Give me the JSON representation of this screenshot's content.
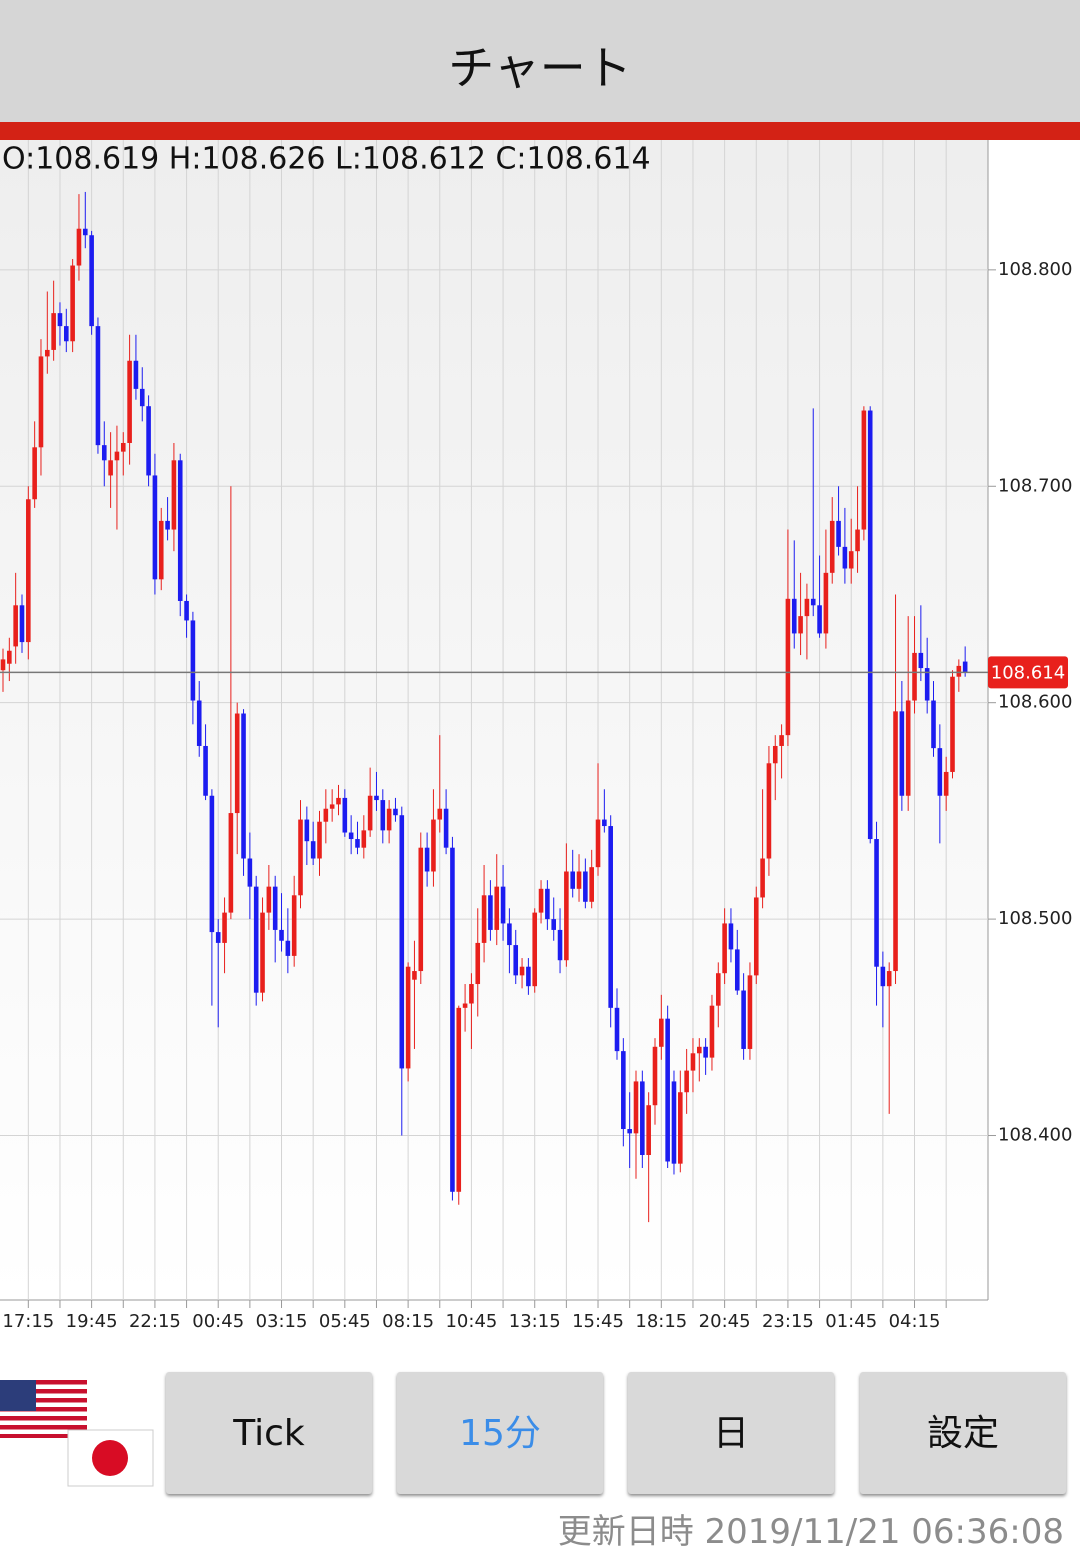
{
  "header": {
    "title": "チャート"
  },
  "chart_data": {
    "type": "candlestick",
    "info": "O:108.619 H:108.626 L:108.612 C:108.614",
    "up_color": "#e8201c",
    "down_color": "#1c1cf0",
    "ylim": [
      108.324,
      108.86
    ],
    "yticks": [
      {
        "value": 108.4,
        "label": "108.400"
      },
      {
        "value": 108.5,
        "label": "108.500"
      },
      {
        "value": 108.6,
        "label": "108.600"
      },
      {
        "value": 108.7,
        "label": "108.700"
      },
      {
        "value": 108.8,
        "label": "108.800"
      }
    ],
    "grid": true,
    "last_price": 108.614,
    "categories": [
      null,
      null,
      null,
      null,
      "17:15",
      null,
      null,
      null,
      null,
      null,
      null,
      null,
      null,
      null,
      "19:45",
      null,
      null,
      null,
      null,
      null,
      null,
      null,
      null,
      null,
      "22:15",
      null,
      null,
      null,
      null,
      null,
      null,
      null,
      null,
      null,
      "00:45",
      null,
      null,
      null,
      null,
      null,
      null,
      null,
      null,
      null,
      "03:15",
      null,
      null,
      null,
      null,
      null,
      null,
      null,
      null,
      null,
      "05:45",
      null,
      null,
      null,
      null,
      null,
      null,
      null,
      null,
      null,
      "08:15",
      null,
      null,
      null,
      null,
      null,
      null,
      null,
      null,
      null,
      "10:45",
      null,
      null,
      null,
      null,
      null,
      null,
      null,
      null,
      null,
      "13:15",
      null,
      null,
      null,
      null,
      null,
      null,
      null,
      null,
      null,
      "15:45",
      null,
      null,
      null,
      null,
      null,
      null,
      null,
      null,
      null,
      "18:15",
      null,
      null,
      null,
      null,
      null,
      null,
      null,
      null,
      null,
      "20:45",
      null,
      null,
      null,
      null,
      null,
      null,
      null,
      null,
      null,
      "23:15",
      null,
      null,
      null,
      null,
      null,
      null,
      null,
      null,
      null,
      "01:45",
      null,
      null,
      null,
      null,
      null,
      null,
      null,
      null,
      null,
      "04:15",
      null,
      null,
      null,
      null,
      null,
      null,
      null,
      null
    ],
    "ohlc": [
      [
        108.615,
        108.625,
        108.605,
        108.62
      ],
      [
        108.618,
        108.63,
        108.61,
        108.624
      ],
      [
        108.626,
        108.66,
        108.618,
        108.645
      ],
      [
        108.645,
        108.65,
        108.623,
        108.628
      ],
      [
        108.628,
        108.7,
        108.62,
        108.694
      ],
      [
        108.694,
        108.73,
        108.69,
        108.718
      ],
      [
        108.718,
        108.768,
        108.705,
        108.76
      ],
      [
        108.76,
        108.79,
        108.752,
        108.763
      ],
      [
        108.763,
        108.795,
        108.758,
        108.78
      ],
      [
        108.78,
        108.785,
        108.765,
        108.774
      ],
      [
        108.774,
        108.782,
        108.762,
        108.767
      ],
      [
        108.767,
        108.805,
        108.762,
        108.802
      ],
      [
        108.802,
        108.835,
        108.795,
        108.819
      ],
      [
        108.819,
        108.836,
        108.81,
        108.816
      ],
      [
        108.816,
        108.818,
        108.77,
        108.774
      ],
      [
        108.774,
        108.778,
        108.715,
        108.719
      ],
      [
        108.719,
        108.73,
        108.7,
        108.712
      ],
      [
        108.705,
        108.725,
        108.69,
        108.712
      ],
      [
        108.712,
        108.728,
        108.68,
        108.716
      ],
      [
        108.716,
        108.725,
        108.705,
        108.72
      ],
      [
        108.72,
        108.77,
        108.71,
        108.758
      ],
      [
        108.758,
        108.77,
        108.74,
        108.745
      ],
      [
        108.745,
        108.755,
        108.73,
        108.737
      ],
      [
        108.737,
        108.742,
        108.7,
        108.705
      ],
      [
        108.705,
        108.715,
        108.65,
        108.657
      ],
      [
        108.657,
        108.69,
        108.652,
        108.684
      ],
      [
        108.684,
        108.695,
        108.675,
        108.68
      ],
      [
        108.68,
        108.72,
        108.67,
        108.712
      ],
      [
        108.712,
        108.715,
        108.64,
        108.647
      ],
      [
        108.647,
        108.65,
        108.63,
        108.638
      ],
      [
        108.638,
        108.642,
        108.59,
        108.601
      ],
      [
        108.601,
        108.61,
        108.575,
        108.58
      ],
      [
        108.58,
        108.59,
        108.555,
        108.557
      ],
      [
        108.557,
        108.56,
        108.46,
        108.494
      ],
      [
        108.494,
        108.5,
        108.45,
        108.489
      ],
      [
        108.489,
        108.51,
        108.475,
        108.503
      ],
      [
        108.503,
        108.7,
        108.5,
        108.549
      ],
      [
        108.549,
        108.6,
        108.53,
        108.595
      ],
      [
        108.595,
        108.597,
        108.52,
        108.528
      ],
      [
        108.528,
        108.54,
        108.5,
        108.515
      ],
      [
        108.515,
        108.52,
        108.46,
        108.466
      ],
      [
        108.466,
        108.51,
        108.462,
        108.503
      ],
      [
        108.503,
        108.525,
        108.495,
        108.515
      ],
      [
        108.515,
        108.52,
        108.48,
        108.495
      ],
      [
        108.495,
        108.512,
        108.485,
        108.49
      ],
      [
        108.49,
        108.505,
        108.475,
        108.483
      ],
      [
        108.483,
        108.52,
        108.478,
        108.511
      ],
      [
        108.511,
        108.555,
        108.505,
        108.546
      ],
      [
        108.546,
        108.552,
        108.525,
        108.536
      ],
      [
        108.536,
        108.545,
        108.525,
        108.528
      ],
      [
        108.528,
        108.55,
        108.52,
        108.545
      ],
      [
        108.545,
        108.56,
        108.535,
        108.551
      ],
      [
        108.551,
        108.56,
        108.545,
        108.553
      ],
      [
        108.553,
        108.562,
        108.548,
        108.556
      ],
      [
        108.556,
        108.56,
        108.538,
        108.54
      ],
      [
        108.54,
        108.548,
        108.53,
        108.537
      ],
      [
        108.537,
        108.545,
        108.53,
        108.533
      ],
      [
        108.533,
        108.548,
        108.528,
        108.541
      ],
      [
        108.541,
        108.57,
        108.538,
        108.557
      ],
      [
        108.557,
        108.568,
        108.55,
        108.555
      ],
      [
        108.555,
        108.56,
        108.535,
        108.541
      ],
      [
        108.541,
        108.555,
        108.535,
        108.551
      ],
      [
        108.551,
        108.556,
        108.545,
        108.548
      ],
      [
        108.548,
        108.552,
        108.4,
        108.431
      ],
      [
        108.431,
        108.48,
        108.425,
        108.478
      ],
      [
        108.472,
        108.49,
        108.44,
        108.476
      ],
      [
        108.476,
        108.54,
        108.47,
        108.533
      ],
      [
        108.533,
        108.54,
        108.515,
        108.522
      ],
      [
        108.522,
        108.56,
        108.515,
        108.546
      ],
      [
        108.546,
        108.585,
        108.54,
        108.551
      ],
      [
        108.551,
        108.56,
        108.53,
        108.533
      ],
      [
        108.533,
        108.538,
        108.37,
        108.374
      ],
      [
        108.374,
        108.46,
        108.368,
        108.459
      ],
      [
        108.459,
        108.47,
        108.448,
        108.461
      ],
      [
        108.461,
        108.475,
        108.44,
        108.47
      ],
      [
        108.47,
        108.505,
        108.455,
        108.489
      ],
      [
        108.489,
        108.525,
        108.48,
        108.511
      ],
      [
        108.511,
        108.518,
        108.49,
        108.495
      ],
      [
        108.495,
        108.53,
        108.488,
        108.515
      ],
      [
        108.515,
        108.525,
        108.49,
        108.498
      ],
      [
        108.498,
        108.505,
        108.475,
        108.488
      ],
      [
        108.488,
        108.495,
        108.47,
        108.474
      ],
      [
        108.474,
        108.482,
        108.468,
        108.478
      ],
      [
        108.478,
        108.482,
        108.465,
        108.469
      ],
      [
        108.469,
        108.505,
        108.466,
        108.503
      ],
      [
        108.503,
        108.518,
        108.498,
        108.514
      ],
      [
        108.514,
        108.518,
        108.495,
        108.5
      ],
      [
        108.5,
        108.51,
        108.49,
        108.495
      ],
      [
        108.495,
        108.505,
        108.475,
        108.481
      ],
      [
        108.481,
        108.535,
        108.478,
        108.522
      ],
      [
        108.522,
        108.532,
        108.51,
        108.514
      ],
      [
        108.514,
        108.53,
        108.508,
        108.522
      ],
      [
        108.522,
        108.528,
        108.505,
        108.508
      ],
      [
        108.508,
        108.532,
        108.505,
        108.524
      ],
      [
        108.524,
        108.572,
        108.52,
        108.546
      ],
      [
        108.546,
        108.56,
        108.54,
        108.543
      ],
      [
        108.543,
        108.548,
        108.45,
        108.459
      ],
      [
        108.459,
        108.468,
        108.435,
        108.439
      ],
      [
        108.439,
        108.445,
        108.395,
        108.403
      ],
      [
        108.403,
        108.42,
        108.385,
        108.401
      ],
      [
        108.401,
        108.43,
        108.38,
        108.425
      ],
      [
        108.425,
        108.43,
        108.385,
        108.391
      ],
      [
        108.391,
        108.42,
        108.36,
        108.414
      ],
      [
        108.414,
        108.445,
        108.405,
        108.441
      ],
      [
        108.441,
        108.465,
        108.435,
        108.454
      ],
      [
        108.454,
        108.46,
        108.385,
        108.388
      ],
      [
        108.425,
        108.43,
        108.382,
        108.387
      ],
      [
        108.387,
        108.43,
        108.383,
        108.42
      ],
      [
        108.42,
        108.44,
        108.41,
        108.43
      ],
      [
        108.43,
        108.445,
        108.42,
        108.438
      ],
      [
        108.438,
        108.445,
        108.425,
        108.441
      ],
      [
        108.441,
        108.445,
        108.428,
        108.436
      ],
      [
        108.436,
        108.465,
        108.43,
        108.46
      ],
      [
        108.46,
        108.48,
        108.45,
        108.475
      ],
      [
        108.475,
        108.505,
        108.47,
        108.498
      ],
      [
        108.498,
        108.505,
        108.48,
        108.486
      ],
      [
        108.486,
        108.495,
        108.465,
        108.467
      ],
      [
        108.467,
        108.475,
        108.435,
        108.44
      ],
      [
        108.44,
        108.48,
        108.435,
        108.474
      ],
      [
        108.474,
        108.515,
        108.47,
        108.51
      ],
      [
        108.51,
        108.56,
        108.505,
        108.528
      ],
      [
        108.528,
        108.58,
        108.52,
        108.572
      ],
      [
        108.572,
        108.585,
        108.555,
        108.58
      ],
      [
        108.58,
        108.59,
        108.565,
        108.585
      ],
      [
        108.585,
        108.68,
        108.58,
        108.648
      ],
      [
        108.648,
        108.675,
        108.625,
        108.632
      ],
      [
        108.632,
        108.66,
        108.622,
        108.64
      ],
      [
        108.64,
        108.655,
        108.62,
        108.648
      ],
      [
        108.648,
        108.736,
        108.64,
        108.645
      ],
      [
        108.645,
        108.668,
        108.63,
        108.632
      ],
      [
        108.632,
        108.68,
        108.625,
        108.66
      ],
      [
        108.66,
        108.695,
        108.655,
        108.684
      ],
      [
        108.684,
        108.7,
        108.668,
        108.672
      ],
      [
        108.672,
        108.69,
        108.655,
        108.662
      ],
      [
        108.662,
        108.685,
        108.655,
        108.67
      ],
      [
        108.67,
        108.7,
        108.66,
        108.68
      ],
      [
        108.68,
        108.737,
        108.675,
        108.735
      ],
      [
        108.735,
        108.737,
        108.535,
        108.537
      ],
      [
        108.537,
        108.545,
        108.46,
        108.478
      ],
      [
        108.478,
        108.485,
        108.45,
        108.469
      ],
      [
        108.469,
        108.48,
        108.41,
        108.476
      ],
      [
        108.476,
        108.65,
        108.47,
        108.596
      ],
      [
        108.596,
        108.61,
        108.55,
        108.557
      ],
      [
        108.557,
        108.64,
        108.55,
        108.601
      ],
      [
        108.601,
        108.64,
        108.595,
        108.623
      ],
      [
        108.623,
        108.645,
        108.61,
        108.616
      ],
      [
        108.616,
        108.63,
        108.595,
        108.601
      ],
      [
        108.601,
        108.61,
        108.575,
        108.579
      ],
      [
        108.579,
        108.59,
        108.535,
        108.557
      ],
      [
        108.557,
        108.575,
        108.55,
        108.568
      ],
      [
        108.568,
        108.615,
        108.565,
        108.612
      ],
      [
        108.612,
        108.62,
        108.605,
        108.617
      ],
      [
        108.619,
        108.626,
        108.612,
        108.614
      ]
    ]
  },
  "buttons": [
    "Tick",
    "15分",
    "日",
    "設定"
  ],
  "footer": {
    "updated": "更新日時 2019/11/21 06:36:08"
  }
}
